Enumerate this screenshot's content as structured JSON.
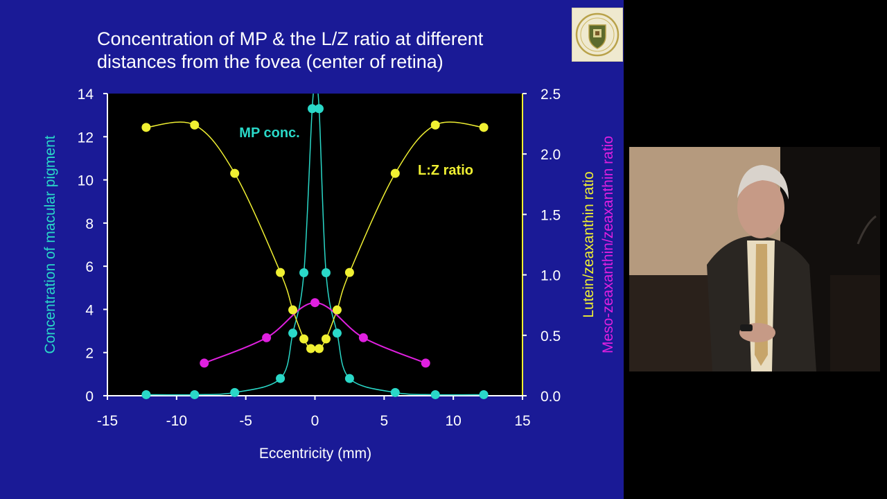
{
  "slide": {
    "title": "Concentration of MP & the L/Z ratio at different distances from the fovea (center of retina)",
    "logo_icon": "university-crest-icon",
    "background_color": "#1a1a96"
  },
  "speaker_video": {
    "icon": "presenter-video-frame"
  },
  "chart_data": {
    "type": "scatter",
    "xlabel": "Eccentricity (mm)",
    "ylabel_left": "Concentration of macular pigment",
    "ylabel_right": "Lutein/zeaxanthin ratio",
    "ylabel_right2": "Meso-zeaxanthin/zeaxanthin ratio",
    "xlim": [
      -15,
      15
    ],
    "ylim_left": [
      0,
      14
    ],
    "ylim_right": [
      0,
      2.5
    ],
    "x_ticks": [
      "-15",
      "-10",
      "-5",
      "0",
      "5",
      "10",
      "15"
    ],
    "y_ticks_left": [
      "0",
      "2",
      "4",
      "6",
      "8",
      "10",
      "12",
      "14"
    ],
    "y_ticks_right": [
      "0.0",
      "0.5",
      "1.0",
      "1.5",
      "2.0",
      "2.5"
    ],
    "grid": false,
    "plot_background": "#000000",
    "series": [
      {
        "name": "MP conc.",
        "axis": "left",
        "color": "#2ad8c8",
        "x": [
          -12.2,
          -8.7,
          -5.8,
          -2.5,
          -1.6,
          -0.8,
          -0.2,
          0.3,
          0.8,
          1.6,
          2.5,
          5.8,
          8.7,
          12.2
        ],
        "y": [
          0.05,
          0.05,
          0.15,
          0.8,
          2.9,
          5.7,
          13.3,
          13.3,
          5.7,
          2.9,
          0.8,
          0.15,
          0.05,
          0.05
        ]
      },
      {
        "name": "L:Z ratio",
        "axis": "right",
        "color": "#f0f032",
        "x": [
          -12.2,
          -8.7,
          -5.8,
          -2.5,
          -1.6,
          -0.8,
          -0.3,
          0.3,
          0.8,
          1.6,
          2.5,
          5.8,
          8.7,
          12.2
        ],
        "y": [
          2.22,
          2.24,
          1.84,
          1.02,
          0.71,
          0.47,
          0.39,
          0.39,
          0.47,
          0.71,
          1.02,
          1.84,
          2.24,
          2.22
        ]
      },
      {
        "name": "",
        "axis": "right",
        "color": "#e020e0",
        "x": [
          -8.0,
          -3.5,
          0.0,
          3.5,
          8.0
        ],
        "y": [
          0.27,
          0.48,
          0.77,
          0.48,
          0.27
        ]
      }
    ],
    "annotations": [
      {
        "text": "MP conc.",
        "series": 0
      },
      {
        "text": "L:Z ratio",
        "series": 1
      }
    ]
  }
}
